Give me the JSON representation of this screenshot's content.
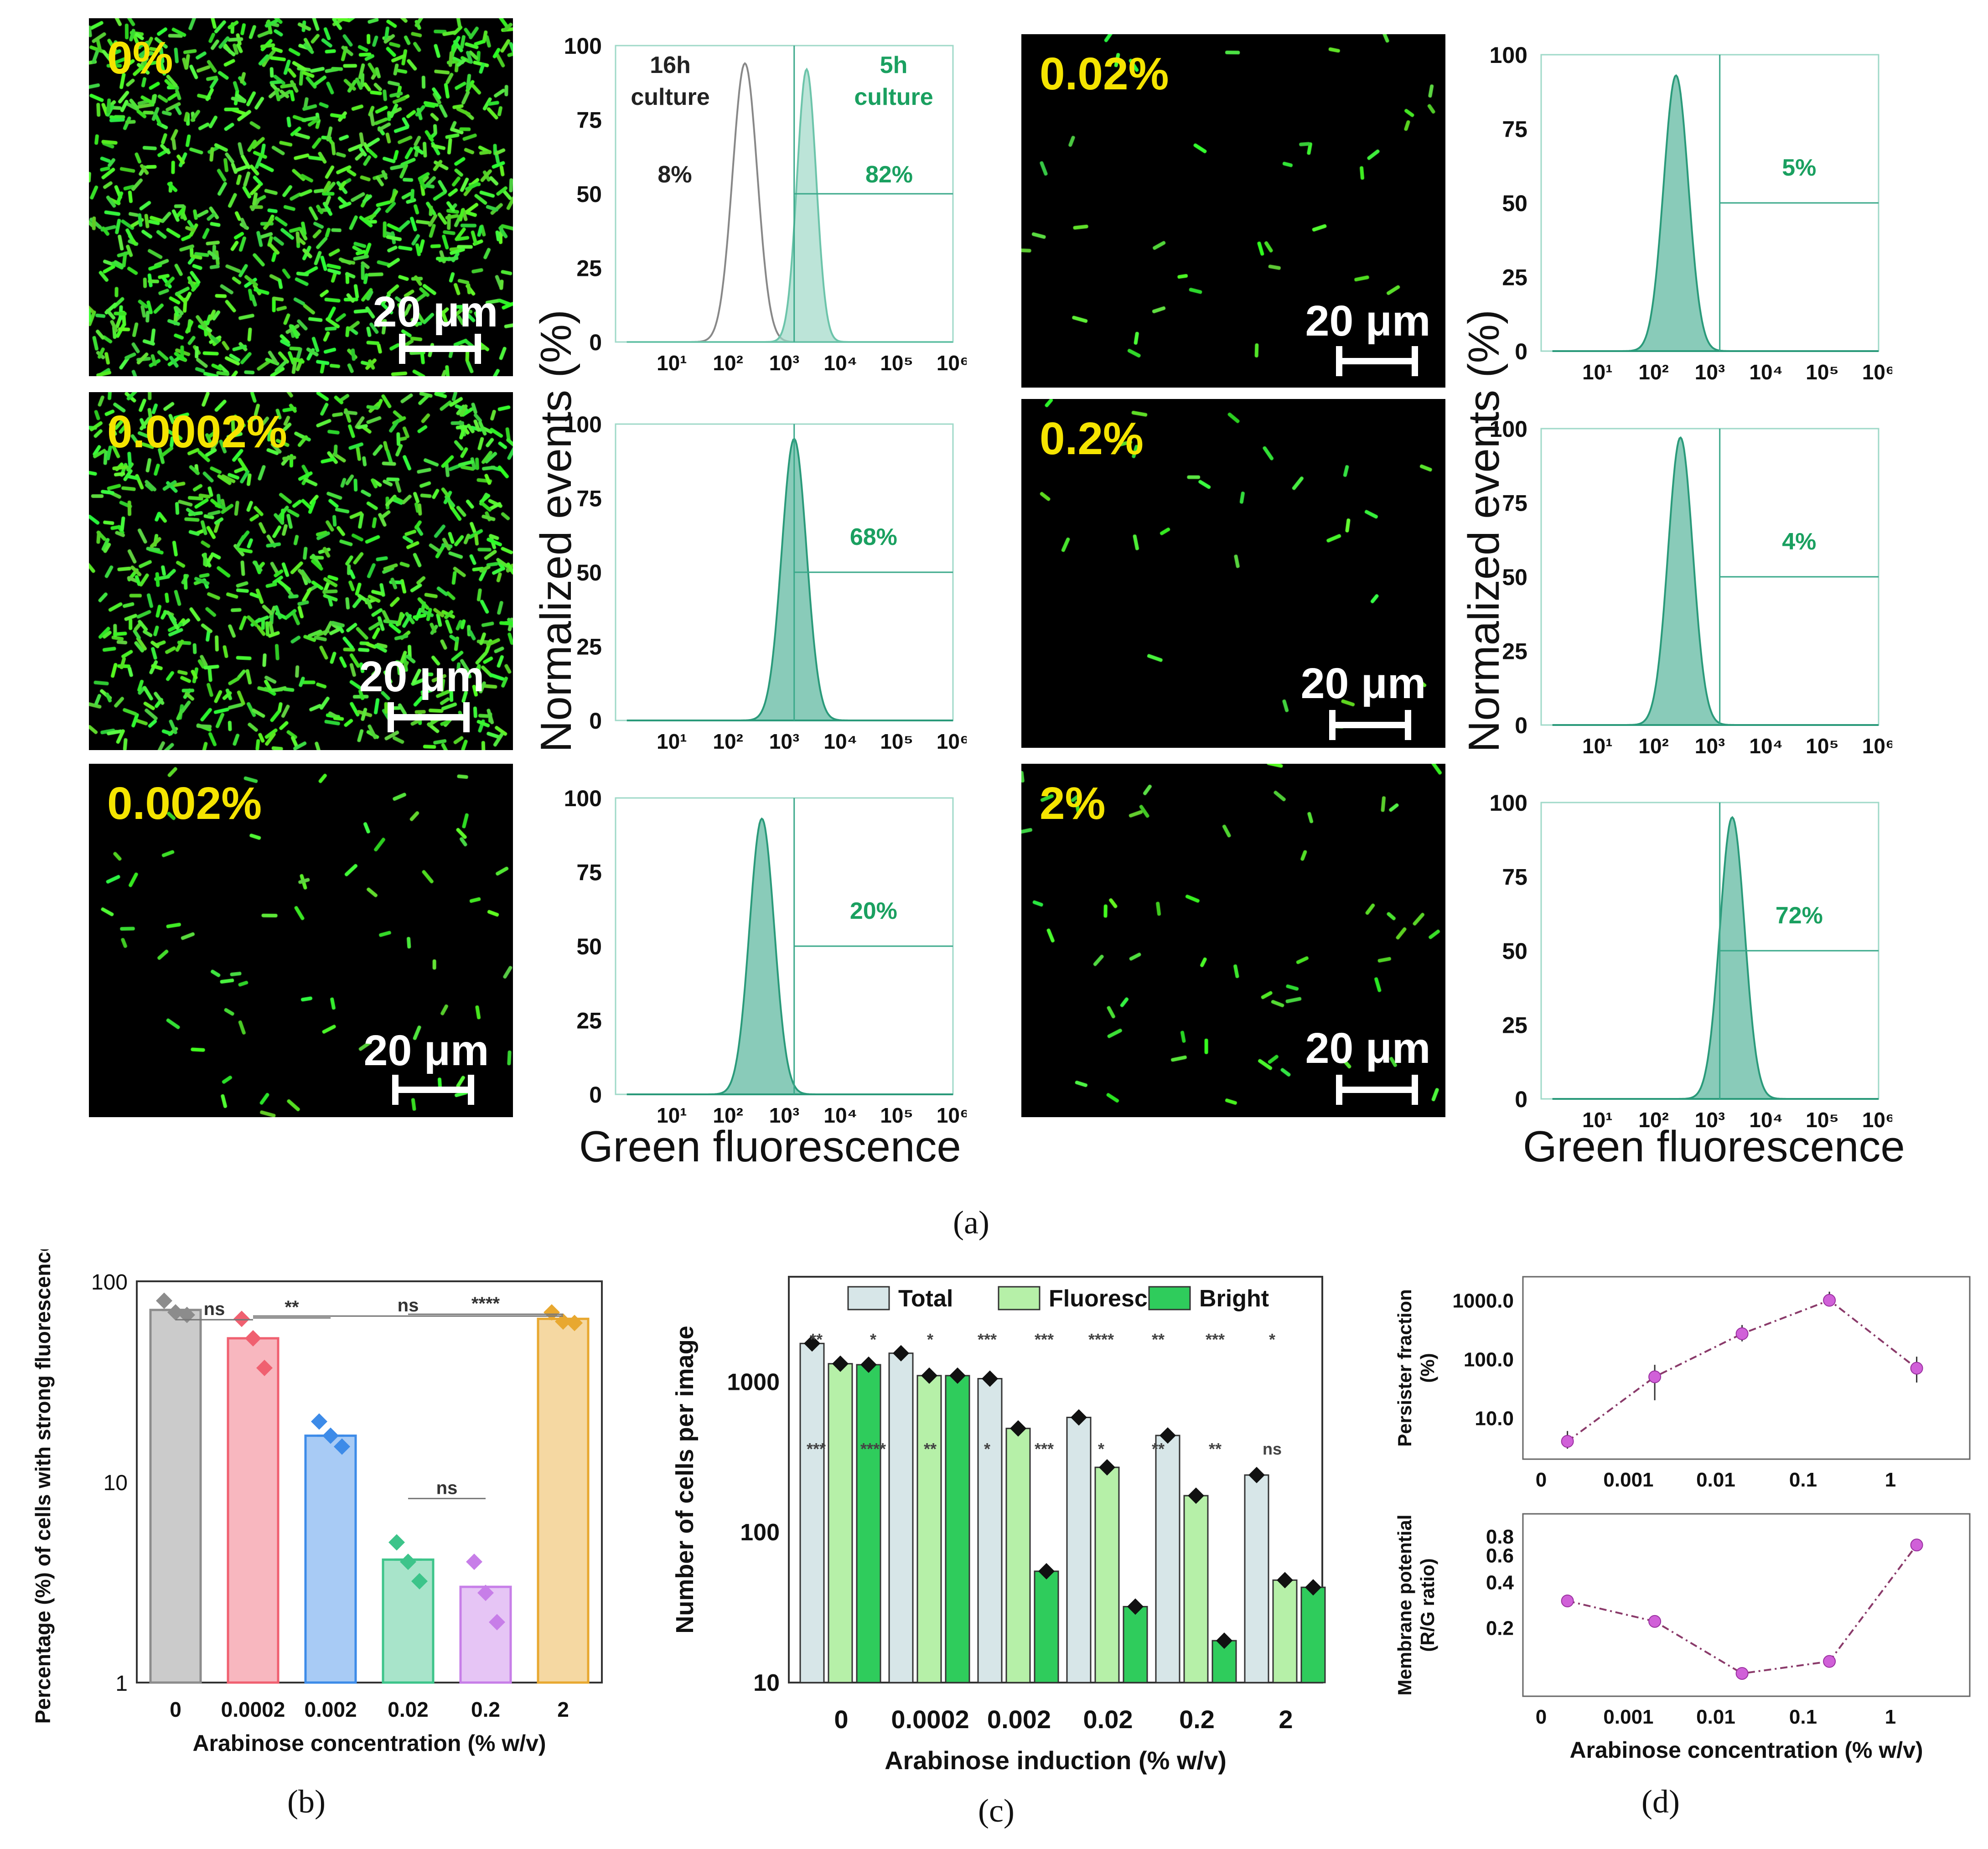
{
  "panel_labels": {
    "a": "(a)",
    "b": "(b)",
    "c": "(c)",
    "d": "(d)"
  },
  "micrographs": [
    {
      "label": "0%",
      "scale": "20 μm",
      "density": 1.0
    },
    {
      "label": "0.0002%",
      "scale": "20 μm",
      "density": 0.85
    },
    {
      "label": "0.002%",
      "scale": "20 μm",
      "density": 0.06
    },
    {
      "label": "0.02%",
      "scale": "20 μm",
      "density": 0.03
    },
    {
      "label": "0.2%",
      "scale": "20 μm",
      "density": 0.02
    },
    {
      "label": "2%",
      "scale": "20 μm",
      "density": 0.05
    }
  ],
  "hist_axis": {
    "ylabel": "Normalized events (%)",
    "xlabel": "Green fluorescence",
    "yticks": [
      "0",
      "25",
      "50",
      "75",
      "100"
    ],
    "xticks": [
      "10¹",
      "10²",
      "10³",
      "10⁴",
      "10⁵",
      "10⁶"
    ]
  },
  "chart_data": [
    {
      "type": "area",
      "panel": "a",
      "position": "left column top",
      "x_scale": "log",
      "xlim": [
        1,
        1000000
      ],
      "ylim": [
        0,
        100
      ],
      "series": [
        {
          "name": "16h culture",
          "peak_x": 200,
          "peak_y": 94,
          "gated_percent": "8%"
        },
        {
          "name": "5h culture",
          "peak_x": 2500,
          "peak_y": 92,
          "gated_percent": "82%"
        }
      ],
      "annotations": [
        "16h culture",
        "5h culture",
        "8%",
        "82%"
      ]
    },
    {
      "type": "area",
      "panel": "a",
      "position": "left column middle",
      "x_scale": "log",
      "xlim": [
        1,
        1000000
      ],
      "ylim": [
        0,
        100
      ],
      "peak_x": 1500,
      "peak_y": 95,
      "gated_percent": "68%"
    },
    {
      "type": "area",
      "panel": "a",
      "position": "left column bottom",
      "x_scale": "log",
      "xlim": [
        1,
        1000000
      ],
      "ylim": [
        0,
        100
      ],
      "peak_x": 400,
      "peak_y": 93,
      "gated_percent": "20%"
    },
    {
      "type": "area",
      "panel": "a",
      "position": "right column top",
      "x_scale": "log",
      "xlim": [
        1,
        1000000
      ],
      "ylim": [
        0,
        100
      ],
      "peak_x": 250,
      "peak_y": 93,
      "gated_percent": "5%"
    },
    {
      "type": "area",
      "panel": "a",
      "position": "right column middle",
      "x_scale": "log",
      "xlim": [
        1,
        1000000
      ],
      "ylim": [
        0,
        100
      ],
      "peak_x": 300,
      "peak_y": 97,
      "gated_percent": "4%"
    },
    {
      "type": "area",
      "panel": "a",
      "position": "right column bottom",
      "x_scale": "log",
      "xlim": [
        1,
        1000000
      ],
      "ylim": [
        0,
        100
      ],
      "peak_x": 2500,
      "peak_y": 95,
      "gated_percent": "72%"
    },
    {
      "type": "bar",
      "panel": "b",
      "y_scale": "log",
      "ylim": [
        1,
        100
      ],
      "categories": [
        "0",
        "0.0002",
        "0.002",
        "0.02",
        "0.2",
        "2"
      ],
      "values": [
        72,
        52,
        17,
        4.1,
        3.0,
        65
      ],
      "points": [
        [
          80,
          70,
          68
        ],
        [
          65,
          52,
          37
        ],
        [
          20,
          17,
          15
        ],
        [
          5,
          4,
          3.2
        ],
        [
          4,
          2.8,
          2
        ],
        [
          70,
          63,
          62
        ]
      ],
      "colors": [
        "#8c8c8c",
        "#f06070",
        "#3d8be8",
        "#3dc48a",
        "#c77ee8",
        "#e8a830"
      ],
      "ylabel": "Percentage (%) of cells with strong fluorescence",
      "xlabel": "Arabinose concentration (% w/v)",
      "yticks": [
        "1",
        "10",
        "100"
      ],
      "significance": [
        "ns",
        "**",
        "ns",
        "****",
        "ns"
      ]
    },
    {
      "type": "bar",
      "panel": "c",
      "y_scale": "log",
      "ylim": [
        10,
        5000
      ],
      "categories": [
        "0",
        "0.0002",
        "0.002",
        "0.02",
        "0.2",
        "2"
      ],
      "series": [
        {
          "name": "Total",
          "values": [
            1800,
            1550,
            1050,
            580,
            440,
            240
          ]
        },
        {
          "name": "Fluorescent",
          "values": [
            1320,
            1100,
            490,
            270,
            175,
            48
          ]
        },
        {
          "name": "Bright",
          "values": [
            1300,
            1100,
            55,
            32,
            19,
            43
          ]
        }
      ],
      "ylabel": "Number of cells per image",
      "xlabel": "Arabinose induction (% w/v)",
      "yticks": [
        "10",
        "100",
        "1000"
      ],
      "significance": [
        "**",
        "*",
        "*",
        "***",
        "***",
        "****",
        "**",
        "***",
        "*",
        "***",
        "****",
        "**",
        "*",
        "***",
        "*",
        "**",
        "**",
        "ns"
      ]
    },
    {
      "type": "scatter",
      "panel": "d-top",
      "x_scale": "log",
      "y_scale": "log",
      "x": [
        0.0002,
        0.002,
        0.02,
        0.2,
        2
      ],
      "y": [
        4,
        50,
        270,
        1000,
        70
      ],
      "err": [
        [
          3,
          6
        ],
        [
          20,
          80
        ],
        [
          200,
          380
        ],
        [
          800,
          1400
        ],
        [
          40,
          110
        ]
      ],
      "ylabel": "Persister fraction (%)",
      "yticks": [
        "10.0",
        "100.0",
        "1000.0"
      ],
      "xticks": [
        "0",
        "0.001",
        "0.01",
        "0.1",
        "1"
      ]
    },
    {
      "type": "scatter",
      "panel": "d-bottom",
      "x_scale": "log",
      "y_scale": "log",
      "x": [
        0.0002,
        0.002,
        0.02,
        0.2,
        2
      ],
      "y": [
        0.3,
        0.22,
        0.1,
        0.12,
        0.7
      ],
      "ylabel": "Membrane potential (R/G ratio)",
      "xlabel": "Arabinose concentration (% w/v)",
      "yticks": [
        "0.2",
        "0.4",
        "0.6",
        "0.8"
      ],
      "xticks": [
        "0",
        "0.001",
        "0.01",
        "0.1",
        "1"
      ]
    }
  ]
}
